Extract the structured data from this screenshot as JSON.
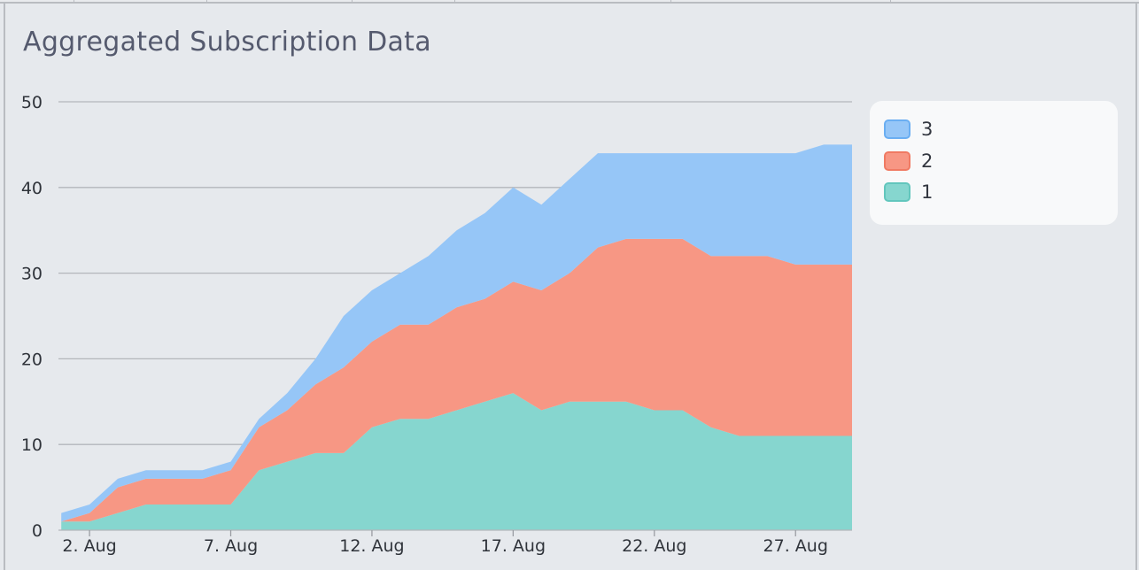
{
  "chart_data": {
    "type": "area",
    "stacked": true,
    "title": "Aggregated Subscription Data",
    "xlabel": "",
    "ylabel": "",
    "x": [
      1,
      2,
      3,
      4,
      5,
      6,
      7,
      8,
      9,
      10,
      11,
      12,
      13,
      14,
      15,
      16,
      17,
      18,
      19,
      20,
      21,
      22,
      23,
      24,
      25,
      26,
      27,
      28,
      29
    ],
    "x_tick_values": [
      2,
      7,
      12,
      17,
      22,
      27
    ],
    "x_tick_labels": [
      "2. Aug",
      "7. Aug",
      "12. Aug",
      "17. Aug",
      "22. Aug",
      "27. Aug"
    ],
    "xlim": [
      0.9,
      29
    ],
    "ylim": [
      0,
      50
    ],
    "y_ticks": [
      0,
      10,
      20,
      30,
      40,
      50
    ],
    "grid": true,
    "legend_position": "right",
    "series": [
      {
        "name": "1",
        "color": "#86d6cf",
        "border_color": "#62c6bd",
        "values": [
          1,
          1,
          2,
          3,
          3,
          3,
          3,
          7,
          8,
          9,
          9,
          12,
          13,
          13,
          14,
          15,
          16,
          14,
          15,
          15,
          15,
          14,
          14,
          12,
          11,
          11,
          11,
          11,
          11
        ]
      },
      {
        "name": "2",
        "color": "#f79784",
        "border_color": "#f07a63",
        "values": [
          0,
          1,
          3,
          3,
          3,
          3,
          4,
          5,
          6,
          8,
          10,
          10,
          11,
          11,
          12,
          12,
          13,
          14,
          15,
          18,
          19,
          20,
          20,
          20,
          21,
          21,
          20,
          20,
          20
        ]
      },
      {
        "name": "3",
        "color": "#96c6f7",
        "border_color": "#6aaef2",
        "values": [
          1,
          1,
          1,
          1,
          1,
          1,
          1,
          1,
          2,
          3,
          6,
          6,
          6,
          8,
          9,
          10,
          11,
          10,
          11,
          11,
          10,
          10,
          10,
          12,
          12,
          12,
          13,
          14,
          14
        ]
      }
    ]
  }
}
